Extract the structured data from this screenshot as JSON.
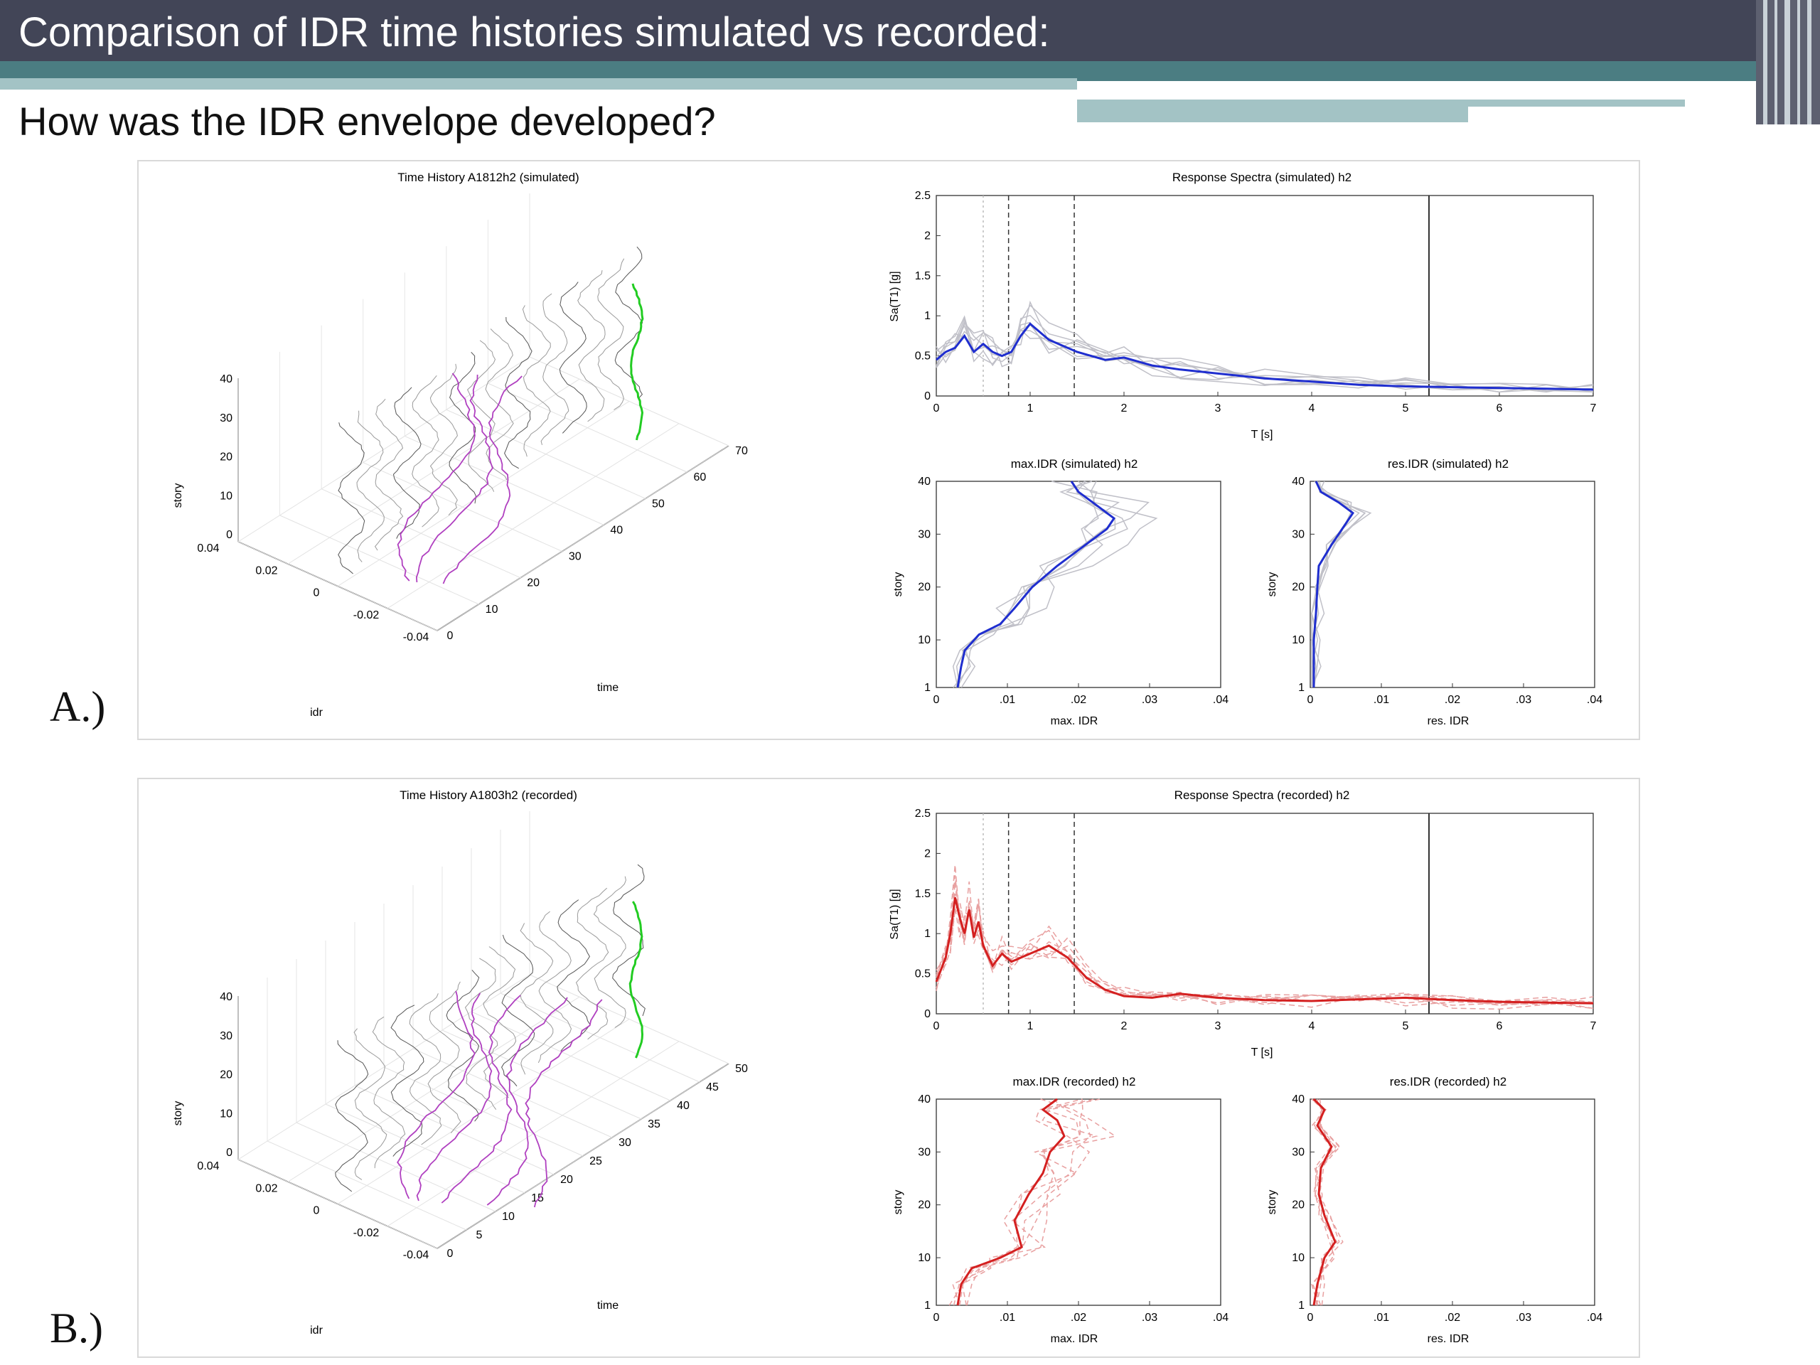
{
  "slide": {
    "title": "Comparison of IDR time histories simulated vs recorded:",
    "subtitle": "How was the IDR envelope developed?"
  },
  "colors": {
    "header_bg": "#424557",
    "accent_teal": "#4b7d82",
    "accent_light": "#a3c3c5",
    "simulated": "#1f2ecf",
    "recorded": "#d42020",
    "envelope_path": "#b040c0",
    "max_line": "#22cc22"
  },
  "panels": [
    {
      "label": "A.)",
      "kind": "simulated",
      "line_color": "#1f2ecf",
      "time_history": {
        "title": "Time History A1812h2 (simulated)",
        "xlabel": "idr",
        "ylabel": "story",
        "zlabel": "time",
        "idr_ticks": [
          "0.04",
          "0.02",
          "0",
          "-0.02",
          "-0.04"
        ],
        "story_ticks": [
          "40",
          "30",
          "20",
          "10",
          "0"
        ],
        "time_ticks": [
          "0",
          "10",
          "20",
          "30",
          "40",
          "50",
          "60",
          "70"
        ]
      },
      "spectra": {
        "title": "Response Spectra (simulated) h2",
        "xlabel": "T [s]",
        "ylabel": "Sa(T1) [g]",
        "xticks": [
          "0",
          "1",
          "2",
          "3",
          "4",
          "5",
          "6",
          "7"
        ],
        "yticks": [
          "0",
          "0.5",
          "1",
          "1.5",
          "2",
          "2.5"
        ],
        "dashed_periods": [
          0.5,
          0.77,
          1.47
        ],
        "solid_period": 5.25
      },
      "max_idr": {
        "title": "max.IDR (simulated) h2",
        "xlabel": "max. IDR",
        "ylabel": "story",
        "xticks": [
          "0",
          ".01",
          ".02",
          ".03",
          ".04"
        ],
        "yticks": [
          "1",
          "10",
          "20",
          "30",
          "40"
        ]
      },
      "res_idr": {
        "title": "res.IDR (simulated) h2",
        "xlabel": "res. IDR",
        "ylabel": "story",
        "xticks": [
          "0",
          ".01",
          ".02",
          ".03",
          ".04"
        ],
        "yticks": [
          "1",
          "10",
          "20",
          "30",
          "40"
        ]
      }
    },
    {
      "label": "B.)",
      "kind": "recorded",
      "line_color": "#d42020",
      "time_history": {
        "title": "Time History A1803h2 (recorded)",
        "xlabel": "idr",
        "ylabel": "story",
        "zlabel": "time",
        "idr_ticks": [
          "0.04",
          "0.02",
          "0",
          "-0.02",
          "-0.04"
        ],
        "story_ticks": [
          "40",
          "30",
          "20",
          "10",
          "0"
        ],
        "time_ticks": [
          "0",
          "5",
          "10",
          "15",
          "20",
          "25",
          "30",
          "35",
          "40",
          "45",
          "50"
        ]
      },
      "spectra": {
        "title": "Response Spectra (recorded) h2",
        "xlabel": "T [s]",
        "ylabel": "Sa(T1) [g]",
        "xticks": [
          "0",
          "1",
          "2",
          "3",
          "4",
          "5",
          "6",
          "7"
        ],
        "yticks": [
          "0",
          "0.5",
          "1",
          "1.5",
          "2",
          "2.5"
        ],
        "dashed_periods": [
          0.5,
          0.77,
          1.47
        ],
        "solid_period": 5.25
      },
      "max_idr": {
        "title": "max.IDR (recorded) h2",
        "xlabel": "max. IDR",
        "ylabel": "story",
        "xticks": [
          "0",
          ".01",
          ".02",
          ".03",
          ".04"
        ],
        "yticks": [
          "1",
          "10",
          "20",
          "30",
          "40"
        ]
      },
      "res_idr": {
        "title": "res.IDR (recorded) h2",
        "xlabel": "res. IDR",
        "ylabel": "story",
        "xticks": [
          "0",
          ".01",
          ".02",
          ".03",
          ".04"
        ],
        "yticks": [
          "1",
          "10",
          "20",
          "30",
          "40"
        ]
      }
    }
  ],
  "chart_data": [
    {
      "type": "line",
      "title": "Response Spectra (simulated) h2",
      "xlabel": "T [s]",
      "ylabel": "Sa(T1) [g]",
      "xlim": [
        0,
        7
      ],
      "ylim": [
        0,
        2.5
      ],
      "series": [
        {
          "x": [
            0,
            0.1,
            0.2,
            0.3,
            0.4,
            0.5,
            0.6,
            0.7,
            0.8,
            0.9,
            1.0,
            1.2,
            1.5,
            1.8,
            2.0,
            2.3,
            2.6,
            3.0,
            3.5,
            4.0,
            4.5,
            5.0,
            5.5,
            6.0,
            6.5,
            7.0
          ],
          "y": [
            0.45,
            0.55,
            0.6,
            0.75,
            0.55,
            0.65,
            0.55,
            0.5,
            0.55,
            0.75,
            0.9,
            0.7,
            0.55,
            0.45,
            0.48,
            0.38,
            0.33,
            0.28,
            0.22,
            0.18,
            0.14,
            0.12,
            0.11,
            0.1,
            0.09,
            0.08
          ]
        }
      ]
    },
    {
      "type": "line",
      "title": "max.IDR (simulated) h2",
      "xlabel": "max. IDR",
      "ylabel": "story",
      "xlim": [
        0,
        0.04
      ],
      "ylim": [
        1,
        40
      ],
      "series": [
        {
          "x": [
            0.003,
            0.0035,
            0.004,
            0.006,
            0.009,
            0.011,
            0.0135,
            0.017,
            0.021,
            0.024,
            0.025,
            0.022,
            0.02,
            0.019
          ],
          "y": [
            1,
            5,
            8,
            11,
            13,
            16,
            20,
            24,
            28,
            31,
            33,
            36,
            38,
            40
          ]
        }
      ]
    },
    {
      "type": "line",
      "title": "res.IDR (simulated) h2",
      "xlabel": "res. IDR",
      "ylabel": "story",
      "xlim": [
        0,
        0.04
      ],
      "ylim": [
        1,
        40
      ],
      "series": [
        {
          "x": [
            0.0005,
            0.0005,
            0.0005,
            0.0008,
            0.001,
            0.0012,
            0.003,
            0.006,
            0.004,
            0.0015,
            0.0008
          ],
          "y": [
            1,
            5,
            10,
            15,
            20,
            24,
            28,
            34,
            36,
            38,
            40
          ]
        }
      ]
    },
    {
      "type": "line",
      "title": "Response Spectra (recorded) h2",
      "xlabel": "T [s]",
      "ylabel": "Sa(T1) [g]",
      "xlim": [
        0,
        7
      ],
      "ylim": [
        0,
        2.5
      ],
      "series": [
        {
          "x": [
            0,
            0.1,
            0.15,
            0.2,
            0.25,
            0.3,
            0.35,
            0.4,
            0.45,
            0.5,
            0.6,
            0.7,
            0.8,
            1.0,
            1.2,
            1.4,
            1.6,
            1.8,
            2.0,
            2.3,
            2.6,
            3.0,
            3.5,
            4.0,
            4.5,
            5.0,
            5.5,
            6.0,
            6.5,
            7.0
          ],
          "y": [
            0.4,
            0.7,
            1.0,
            1.45,
            1.2,
            1.0,
            1.3,
            0.95,
            1.15,
            0.85,
            0.6,
            0.75,
            0.65,
            0.75,
            0.85,
            0.7,
            0.45,
            0.3,
            0.22,
            0.2,
            0.25,
            0.2,
            0.17,
            0.16,
            0.18,
            0.2,
            0.17,
            0.15,
            0.14,
            0.13
          ]
        }
      ]
    },
    {
      "type": "line",
      "title": "max.IDR (recorded) h2",
      "xlabel": "max. IDR",
      "ylabel": "story",
      "xlim": [
        0,
        0.04
      ],
      "ylim": [
        1,
        40
      ],
      "series": [
        {
          "x": [
            0.003,
            0.0035,
            0.005,
            0.009,
            0.012,
            0.011,
            0.013,
            0.015,
            0.016,
            0.018,
            0.017,
            0.015,
            0.017
          ],
          "y": [
            1,
            5,
            8,
            10,
            12,
            17,
            22,
            26,
            30,
            33,
            36,
            38,
            40
          ]
        }
      ]
    },
    {
      "type": "line",
      "title": "res.IDR (recorded) h2",
      "xlabel": "res. IDR",
      "ylabel": "story",
      "xlim": [
        0,
        0.04
      ],
      "ylim": [
        1,
        40
      ],
      "series": [
        {
          "x": [
            0.0005,
            0.001,
            0.002,
            0.0035,
            0.002,
            0.0012,
            0.0015,
            0.003,
            0.001,
            0.002,
            0.0005
          ],
          "y": [
            1,
            5,
            10,
            13,
            18,
            22,
            27,
            31,
            35,
            38,
            40
          ]
        }
      ]
    }
  ]
}
